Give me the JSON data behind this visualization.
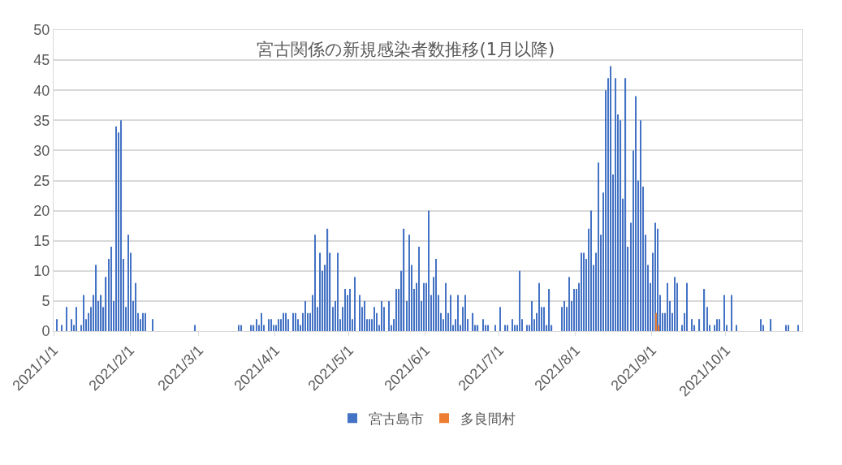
{
  "chart_data": {
    "type": "bar",
    "title": "宮古関係の新規感染者数推移(1月以降)",
    "series": [
      {
        "name": "宮古島市",
        "color": "#4472c4",
        "x": [
          "2021-01-02",
          "2021-01-04",
          "2021-01-06",
          "2021-01-08",
          "2021-01-09",
          "2021-01-10",
          "2021-01-12",
          "2021-01-13",
          "2021-01-14",
          "2021-01-15",
          "2021-01-16",
          "2021-01-17",
          "2021-01-18",
          "2021-01-19",
          "2021-01-20",
          "2021-01-21",
          "2021-01-22",
          "2021-01-23",
          "2021-01-24",
          "2021-01-25",
          "2021-01-26",
          "2021-01-27",
          "2021-01-28",
          "2021-01-29",
          "2021-01-30",
          "2021-01-31",
          "2021-02-01",
          "2021-02-02",
          "2021-02-03",
          "2021-02-04",
          "2021-02-05",
          "2021-02-06",
          "2021-02-07",
          "2021-02-10",
          "2021-02-27",
          "2021-03-17",
          "2021-03-18",
          "2021-03-22",
          "2021-03-23",
          "2021-03-24",
          "2021-03-25",
          "2021-03-26",
          "2021-03-27",
          "2021-03-29",
          "2021-03-30",
          "2021-03-31",
          "2021-04-01",
          "2021-04-02",
          "2021-04-03",
          "2021-04-04",
          "2021-04-05",
          "2021-04-06",
          "2021-04-08",
          "2021-04-09",
          "2021-04-10",
          "2021-04-11",
          "2021-04-12",
          "2021-04-13",
          "2021-04-14",
          "2021-04-15",
          "2021-04-16",
          "2021-04-17",
          "2021-04-18",
          "2021-04-19",
          "2021-04-20",
          "2021-04-21",
          "2021-04-22",
          "2021-04-23",
          "2021-04-24",
          "2021-04-25",
          "2021-04-26",
          "2021-04-27",
          "2021-04-28",
          "2021-04-29",
          "2021-04-30",
          "2021-05-01",
          "2021-05-02",
          "2021-05-03",
          "2021-05-05",
          "2021-05-06",
          "2021-05-07",
          "2021-05-08",
          "2021-05-09",
          "2021-05-10",
          "2021-05-11",
          "2021-05-12",
          "2021-05-13",
          "2021-05-14",
          "2021-05-15",
          "2021-05-17",
          "2021-05-18",
          "2021-05-19",
          "2021-05-20",
          "2021-05-21",
          "2021-05-22",
          "2021-05-23",
          "2021-05-24",
          "2021-05-25",
          "2021-05-26",
          "2021-05-27",
          "2021-05-28",
          "2021-05-29",
          "2021-05-30",
          "2021-05-31",
          "2021-06-01",
          "2021-06-02",
          "2021-06-03",
          "2021-06-04",
          "2021-06-05",
          "2021-06-06",
          "2021-06-07",
          "2021-06-08",
          "2021-06-09",
          "2021-06-10",
          "2021-06-11",
          "2021-06-12",
          "2021-06-13",
          "2021-06-14",
          "2021-06-15",
          "2021-06-16",
          "2021-06-17",
          "2021-06-18",
          "2021-06-20",
          "2021-06-21",
          "2021-06-22",
          "2021-06-24",
          "2021-06-25",
          "2021-06-26",
          "2021-06-29",
          "2021-07-01",
          "2021-07-03",
          "2021-07-04",
          "2021-07-06",
          "2021-07-07",
          "2021-07-08",
          "2021-07-09",
          "2021-07-10",
          "2021-07-12",
          "2021-07-13",
          "2021-07-14",
          "2021-07-15",
          "2021-07-16",
          "2021-07-17",
          "2021-07-18",
          "2021-07-19",
          "2021-07-20",
          "2021-07-21",
          "2021-07-22",
          "2021-07-26",
          "2021-07-27",
          "2021-07-28",
          "2021-07-29",
          "2021-07-30",
          "2021-07-31",
          "2021-08-01",
          "2021-08-02",
          "2021-08-03",
          "2021-08-04",
          "2021-08-05",
          "2021-08-06",
          "2021-08-07",
          "2021-08-08",
          "2021-08-09",
          "2021-08-10",
          "2021-08-11",
          "2021-08-12",
          "2021-08-13",
          "2021-08-14",
          "2021-08-15",
          "2021-08-16",
          "2021-08-17",
          "2021-08-18",
          "2021-08-19",
          "2021-08-20",
          "2021-08-21",
          "2021-08-22",
          "2021-08-23",
          "2021-08-24",
          "2021-08-25",
          "2021-08-26",
          "2021-08-27",
          "2021-08-28",
          "2021-08-29",
          "2021-08-30",
          "2021-08-31",
          "2021-09-01",
          "2021-09-02",
          "2021-09-03",
          "2021-09-04",
          "2021-09-05",
          "2021-09-06",
          "2021-09-07",
          "2021-09-08",
          "2021-09-09",
          "2021-09-10",
          "2021-09-11",
          "2021-09-13",
          "2021-09-14",
          "2021-09-15",
          "2021-09-17",
          "2021-09-18",
          "2021-09-20",
          "2021-09-22",
          "2021-09-23",
          "2021-09-24",
          "2021-09-26",
          "2021-09-27",
          "2021-09-28",
          "2021-09-30",
          "2021-10-01",
          "2021-10-03",
          "2021-10-05",
          "2021-10-15",
          "2021-10-16",
          "2021-10-19",
          "2021-10-25",
          "2021-10-26",
          "2021-10-30"
        ],
        "values": [
          2,
          1,
          4,
          2,
          1,
          4,
          1,
          6,
          2,
          3,
          4,
          6,
          11,
          5,
          6,
          4,
          9,
          12,
          14,
          5,
          34,
          33,
          35,
          12,
          4,
          16,
          13,
          5,
          8,
          3,
          2,
          3,
          3,
          2,
          1,
          1,
          1,
          1,
          1,
          2,
          1,
          3,
          1,
          2,
          2,
          1,
          1,
          2,
          2,
          3,
          3,
          2,
          3,
          3,
          2,
          1,
          3,
          5,
          3,
          3,
          6,
          16,
          4,
          13,
          10,
          11,
          17,
          13,
          4,
          5,
          13,
          2,
          4,
          7,
          6,
          7,
          2,
          9,
          6,
          4,
          5,
          2,
          2,
          2,
          4,
          3,
          1,
          5,
          4,
          5,
          1,
          2,
          7,
          7,
          10,
          17,
          5,
          16,
          11,
          7,
          8,
          14,
          5,
          8,
          8,
          20,
          6,
          9,
          12,
          6,
          3,
          2,
          8,
          3,
          6,
          1,
          2,
          6,
          1,
          4,
          6,
          2,
          3,
          1,
          1,
          2,
          1,
          1,
          1,
          4,
          1,
          1,
          2,
          1,
          1,
          10,
          2,
          1,
          1,
          5,
          2,
          3,
          8,
          4,
          4,
          1,
          7,
          1,
          4,
          5,
          4,
          9,
          5,
          7,
          7,
          8,
          13,
          13,
          12,
          17,
          20,
          11,
          13,
          28,
          16,
          23,
          40,
          42,
          44,
          26,
          42,
          36,
          35,
          22,
          42,
          14,
          18,
          30,
          39,
          25,
          35,
          24,
          16,
          11,
          8,
          13,
          18,
          17,
          6,
          3,
          3,
          8,
          5,
          3,
          9,
          8,
          1,
          3,
          8,
          2,
          1,
          2,
          7,
          4,
          1,
          1,
          2,
          2,
          6,
          1,
          6,
          1,
          2,
          1,
          2,
          1,
          1,
          1
        ]
      },
      {
        "name": "多良間村",
        "color": "#ed7d31",
        "x": [
          "2021-09-02",
          "2021-09-03"
        ],
        "values": [
          3,
          1
        ]
      }
    ],
    "xlim": [
      "2021-01-01",
      "2021-11-01"
    ],
    "xticks": [
      {
        "value": "2021-01-01",
        "label": "2021/1/1"
      },
      {
        "value": "2021-02-01",
        "label": "2021/2/1"
      },
      {
        "value": "2021-03-01",
        "label": "2021/3/1"
      },
      {
        "value": "2021-04-01",
        "label": "2021/4/1"
      },
      {
        "value": "2021-05-01",
        "label": "2021/5/1"
      },
      {
        "value": "2021-06-01",
        "label": "2021/6/1"
      },
      {
        "value": "2021-07-01",
        "label": "2021/7/1"
      },
      {
        "value": "2021-08-01",
        "label": "2021/8/1"
      },
      {
        "value": "2021-09-01",
        "label": "2021/9/1"
      },
      {
        "value": "2021-10-01",
        "label": "2021/10/1"
      }
    ],
    "ylim": [
      0,
      50
    ],
    "yticks": [
      0,
      5,
      10,
      15,
      20,
      25,
      30,
      35,
      40,
      45,
      50
    ],
    "grid": "y",
    "legend": "bottom"
  }
}
